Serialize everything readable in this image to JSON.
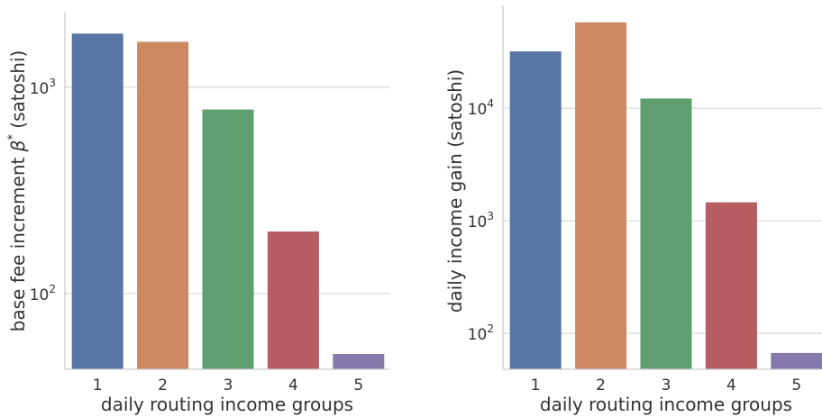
{
  "chart_data": [
    {
      "type": "bar",
      "categories": [
        "1",
        "2",
        "3",
        "4",
        "5"
      ],
      "values": [
        1820,
        1660,
        780,
        200,
        51
      ],
      "colors": [
        "#5875a4",
        "#cc8963",
        "#5f9e6e",
        "#b55d60",
        "#857aab"
      ],
      "xlabel": "daily routing income groups",
      "ylabel_main": "base fee increment ",
      "ylabel_symbol": "β",
      "ylabel_sup": "*",
      "ylabel_unit": " (satoshi)",
      "yscale": "log",
      "ylim": [
        43,
        2300
      ],
      "yticks": [
        {
          "value": 100,
          "base": "10",
          "exp": "2"
        },
        {
          "value": 1000,
          "base": "10",
          "exp": "3"
        }
      ],
      "grid": "y"
    },
    {
      "type": "bar",
      "categories": [
        "1",
        "2",
        "3",
        "4",
        "5"
      ],
      "values": [
        32000,
        58000,
        12200,
        1460,
        67
      ],
      "colors": [
        "#5875a4",
        "#cc8963",
        "#5f9e6e",
        "#b55d60",
        "#857aab"
      ],
      "xlabel": "daily routing income groups",
      "ylabel": "daily income gain (satoshi)",
      "yscale": "log",
      "ylim": [
        48,
        82000
      ],
      "yticks": [
        {
          "value": 100,
          "base": "10",
          "exp": "2"
        },
        {
          "value": 1000,
          "base": "10",
          "exp": "3"
        },
        {
          "value": 10000,
          "base": "10",
          "exp": "4"
        }
      ],
      "grid": "y"
    }
  ]
}
